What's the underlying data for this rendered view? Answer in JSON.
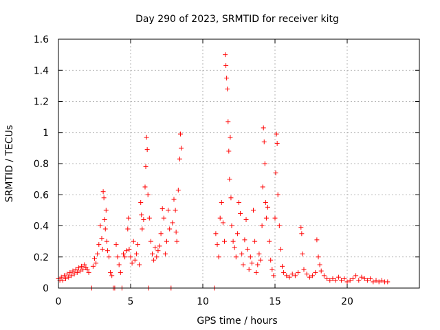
{
  "chart_data": {
    "type": "scatter",
    "title": "Day 290 of 2023, SRMTID for receiver kitg",
    "xlabel": "GPS time / hours",
    "ylabel": "SRMTID / TECUs",
    "xlim": [
      0,
      25
    ],
    "ylim": [
      0,
      1.6
    ],
    "xticks": [
      0,
      5,
      10,
      15,
      20
    ],
    "xtick_labels": [
      "0",
      "5",
      "10",
      "15",
      "20"
    ],
    "yticks": [
      0,
      0.2,
      0.4,
      0.6,
      0.8,
      1.0,
      1.2,
      1.4,
      1.6
    ],
    "ytick_labels": [
      "0",
      "0.2",
      "0.4",
      "0.6",
      "0.8",
      "1",
      "1.2",
      "1.4",
      "1.6"
    ],
    "grid": true,
    "marker": "+",
    "color": "#ff0000",
    "series": [
      {
        "name": "SRMTID",
        "points": [
          [
            0.0,
            0.06
          ],
          [
            0.1,
            0.05
          ],
          [
            0.2,
            0.07
          ],
          [
            0.3,
            0.05
          ],
          [
            0.4,
            0.08
          ],
          [
            0.5,
            0.06
          ],
          [
            0.6,
            0.09
          ],
          [
            0.7,
            0.07
          ],
          [
            0.8,
            0.1
          ],
          [
            0.9,
            0.08
          ],
          [
            1.0,
            0.11
          ],
          [
            1.1,
            0.09
          ],
          [
            1.2,
            0.12
          ],
          [
            1.3,
            0.1
          ],
          [
            1.4,
            0.13
          ],
          [
            1.5,
            0.11
          ],
          [
            1.6,
            0.14
          ],
          [
            1.7,
            0.12
          ],
          [
            1.8,
            0.15
          ],
          [
            1.9,
            0.13
          ],
          [
            2.0,
            0.12
          ],
          [
            2.1,
            0.1
          ],
          [
            2.3,
            0.0
          ],
          [
            2.4,
            0.14
          ],
          [
            2.5,
            0.19
          ],
          [
            2.6,
            0.16
          ],
          [
            2.7,
            0.22
          ],
          [
            2.8,
            0.28
          ],
          [
            2.9,
            0.4
          ],
          [
            3.0,
            0.32
          ],
          [
            3.05,
            0.25
          ],
          [
            3.1,
            0.62
          ],
          [
            3.15,
            0.58
          ],
          [
            3.2,
            0.44
          ],
          [
            3.25,
            0.38
          ],
          [
            3.3,
            0.5
          ],
          [
            3.35,
            0.3
          ],
          [
            3.4,
            0.24
          ],
          [
            3.5,
            0.2
          ],
          [
            3.6,
            0.1
          ],
          [
            3.7,
            0.08
          ],
          [
            3.8,
            0.0
          ],
          [
            3.9,
            0.0
          ],
          [
            4.0,
            0.28
          ],
          [
            4.1,
            0.2
          ],
          [
            4.2,
            0.15
          ],
          [
            4.3,
            0.1
          ],
          [
            4.4,
            0.0
          ],
          [
            4.5,
            0.22
          ],
          [
            4.6,
            0.2
          ],
          [
            4.7,
            0.24
          ],
          [
            4.8,
            0.38
          ],
          [
            4.85,
            0.45
          ],
          [
            4.9,
            0.25
          ],
          [
            5.0,
            0.2
          ],
          [
            5.1,
            0.16
          ],
          [
            5.2,
            0.3
          ],
          [
            5.3,
            0.18
          ],
          [
            5.4,
            0.22
          ],
          [
            5.5,
            0.28
          ],
          [
            5.6,
            0.15
          ],
          [
            5.7,
            0.55
          ],
          [
            5.75,
            0.47
          ],
          [
            5.8,
            0.38
          ],
          [
            5.9,
            0.44
          ],
          [
            6.0,
            0.65
          ],
          [
            6.05,
            0.78
          ],
          [
            6.1,
            0.97
          ],
          [
            6.15,
            0.89
          ],
          [
            6.2,
            0.6
          ],
          [
            6.25,
            0.0
          ],
          [
            6.3,
            0.45
          ],
          [
            6.4,
            0.3
          ],
          [
            6.5,
            0.22
          ],
          [
            6.6,
            0.18
          ],
          [
            6.7,
            0.26
          ],
          [
            6.8,
            0.2
          ],
          [
            6.9,
            0.24
          ],
          [
            7.0,
            0.27
          ],
          [
            7.1,
            0.35
          ],
          [
            7.2,
            0.51
          ],
          [
            7.3,
            0.45
          ],
          [
            7.4,
            0.22
          ],
          [
            7.5,
            0.3
          ],
          [
            7.6,
            0.5
          ],
          [
            7.7,
            0.38
          ],
          [
            7.8,
            0.0
          ],
          [
            7.9,
            0.42
          ],
          [
            8.0,
            0.57
          ],
          [
            8.1,
            0.5
          ],
          [
            8.15,
            0.36
          ],
          [
            8.2,
            0.3
          ],
          [
            8.3,
            0.63
          ],
          [
            8.4,
            0.83
          ],
          [
            8.45,
            0.99
          ],
          [
            8.5,
            0.9
          ],
          [
            10.8,
            0.0
          ],
          [
            10.9,
            0.35
          ],
          [
            11.0,
            0.28
          ],
          [
            11.1,
            0.2
          ],
          [
            11.2,
            0.45
          ],
          [
            11.3,
            0.55
          ],
          [
            11.4,
            0.42
          ],
          [
            11.5,
            0.3
          ],
          [
            11.55,
            1.5
          ],
          [
            11.6,
            1.43
          ],
          [
            11.65,
            1.35
          ],
          [
            11.7,
            1.28
          ],
          [
            11.75,
            1.07
          ],
          [
            11.8,
            0.88
          ],
          [
            11.85,
            0.7
          ],
          [
            11.9,
            0.97
          ],
          [
            11.95,
            0.58
          ],
          [
            12.0,
            0.4
          ],
          [
            12.1,
            0.3
          ],
          [
            12.2,
            0.26
          ],
          [
            12.3,
            0.2
          ],
          [
            12.4,
            0.35
          ],
          [
            12.5,
            0.55
          ],
          [
            12.6,
            0.48
          ],
          [
            12.7,
            0.22
          ],
          [
            12.8,
            0.15
          ],
          [
            12.9,
            0.31
          ],
          [
            13.0,
            0.44
          ],
          [
            13.1,
            0.25
          ],
          [
            13.2,
            0.12
          ],
          [
            13.3,
            0.2
          ],
          [
            13.4,
            0.16
          ],
          [
            13.5,
            0.5
          ],
          [
            13.6,
            0.3
          ],
          [
            13.7,
            0.1
          ],
          [
            13.8,
            0.15
          ],
          [
            13.9,
            0.22
          ],
          [
            14.0,
            0.18
          ],
          [
            14.1,
            0.4
          ],
          [
            14.15,
            0.65
          ],
          [
            14.2,
            1.03
          ],
          [
            14.25,
            0.94
          ],
          [
            14.3,
            0.8
          ],
          [
            14.35,
            0.55
          ],
          [
            14.4,
            0.45
          ],
          [
            14.5,
            0.52
          ],
          [
            14.6,
            0.3
          ],
          [
            14.7,
            0.18
          ],
          [
            14.8,
            0.12
          ],
          [
            14.9,
            0.08
          ],
          [
            15.0,
            0.45
          ],
          [
            15.05,
            0.74
          ],
          [
            15.1,
            0.99
          ],
          [
            15.15,
            0.93
          ],
          [
            15.2,
            0.6
          ],
          [
            15.3,
            0.4
          ],
          [
            15.4,
            0.25
          ],
          [
            15.5,
            0.14
          ],
          [
            15.6,
            0.1
          ],
          [
            15.8,
            0.08
          ],
          [
            16.0,
            0.07
          ],
          [
            16.2,
            0.09
          ],
          [
            16.4,
            0.08
          ],
          [
            16.6,
            0.1
          ],
          [
            16.8,
            0.39
          ],
          [
            16.85,
            0.35
          ],
          [
            16.9,
            0.22
          ],
          [
            17.0,
            0.12
          ],
          [
            17.2,
            0.09
          ],
          [
            17.4,
            0.07
          ],
          [
            17.6,
            0.08
          ],
          [
            17.8,
            0.1
          ],
          [
            17.9,
            0.31
          ],
          [
            18.0,
            0.2
          ],
          [
            18.1,
            0.15
          ],
          [
            18.2,
            0.11
          ],
          [
            18.4,
            0.08
          ],
          [
            18.6,
            0.06
          ],
          [
            18.8,
            0.05
          ],
          [
            19.0,
            0.06
          ],
          [
            19.2,
            0.05
          ],
          [
            19.4,
            0.07
          ],
          [
            19.6,
            0.05
          ],
          [
            19.8,
            0.06
          ],
          [
            20.0,
            0.04
          ],
          [
            20.2,
            0.05
          ],
          [
            20.4,
            0.06
          ],
          [
            20.6,
            0.08
          ],
          [
            20.8,
            0.05
          ],
          [
            21.0,
            0.07
          ],
          [
            21.2,
            0.06
          ],
          [
            21.4,
            0.05
          ],
          [
            21.6,
            0.06
          ],
          [
            21.8,
            0.04
          ],
          [
            22.0,
            0.05
          ],
          [
            22.2,
            0.04
          ],
          [
            22.4,
            0.05
          ],
          [
            22.6,
            0.04
          ],
          [
            22.8,
            0.04
          ]
        ]
      }
    ]
  }
}
